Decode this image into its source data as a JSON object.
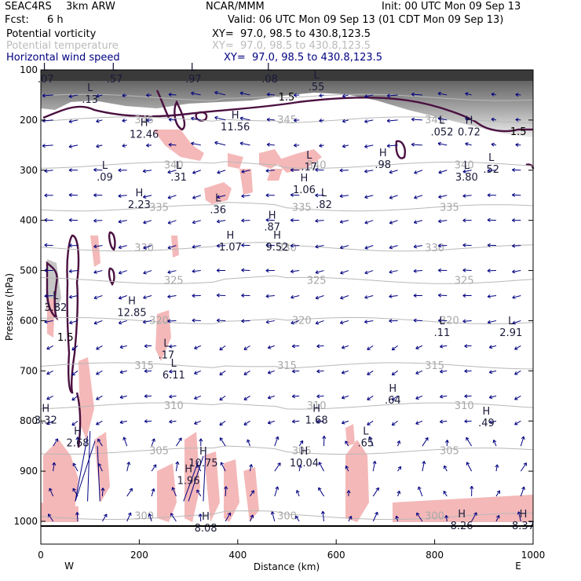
{
  "header": {
    "project": "SEAC4RS",
    "model": "3km ARW",
    "org": "NCAR/MMM",
    "init": "Init: 00 UTC Mon 09 Sep 13",
    "fcst_label": "Fcst:",
    "fcst_value": "6 h",
    "valid": "Valid: 06 UTC Mon 09 Sep 13 (01 CDT Mon 09 Sep 13)"
  },
  "legend": [
    {
      "name": "Potential vorticity",
      "xy": "XY=  97.0, 98.5 to 430.8,123.5",
      "color": "#000000"
    },
    {
      "name": "Potential temperature",
      "xy": "XY=  97.0, 98.5 to 430.8,123.5",
      "color": "#bbbbbb"
    },
    {
      "name": "Horizontal wind speed",
      "xy": "XY=  97.0, 98.5 to 430.8,123.5",
      "color": "#000080"
    }
  ],
  "chart_data": {
    "type": "cross-section",
    "xlabel": "Distance (km)",
    "ylabel": "Pressure (hPa)",
    "xlim": [
      0,
      1000
    ],
    "ylim": [
      1000,
      100
    ],
    "x_ticks": [
      0,
      200,
      400,
      600,
      800,
      1000
    ],
    "y_ticks": [
      100,
      200,
      300,
      400,
      500,
      600,
      700,
      800,
      900,
      1000
    ],
    "x_end_labels": [
      "W",
      "E"
    ],
    "theta_contours": [
      {
        "label": "300",
        "p": 990
      },
      {
        "label": "305",
        "p": 860
      },
      {
        "label": "310",
        "p": 770
      },
      {
        "label": "315",
        "p": 690
      },
      {
        "label": "320",
        "p": 600
      },
      {
        "label": "325",
        "p": 520
      },
      {
        "label": "330",
        "p": 455
      },
      {
        "label": "335",
        "p": 375
      },
      {
        "label": "340",
        "p": 290
      },
      {
        "label": "345",
        "p": 200
      },
      {
        "label": "1.5",
        "p": 155
      }
    ],
    "extrema": [
      {
        "kind": "L",
        "value": ".07",
        "x": 10,
        "p": 105
      },
      {
        "kind": "L",
        "value": ".57",
        "x": 150,
        "p": 105
      },
      {
        "kind": "L",
        "value": ".97",
        "x": 310,
        "p": 105
      },
      {
        "kind": "L",
        "value": ".08",
        "x": 465,
        "p": 105
      },
      {
        "kind": "L",
        "value": ".55",
        "x": 560,
        "p": 120
      },
      {
        "kind": "L",
        "value": ".13",
        "x": 100,
        "p": 145
      },
      {
        "kind": "H",
        "value": "12.46",
        "x": 210,
        "p": 215
      },
      {
        "kind": "H",
        "value": "11.56",
        "x": 395,
        "p": 200
      },
      {
        "kind": "L",
        "value": ".17",
        "x": 545,
        "p": 280
      },
      {
        "kind": "L",
        "value": ".052",
        "x": 815,
        "p": 210
      },
      {
        "kind": "H",
        "value": "0.72",
        "x": 870,
        "p": 210
      },
      {
        "kind": "H",
        "value": ".98",
        "x": 695,
        "p": 275
      },
      {
        "kind": "L",
        "value": ".52",
        "x": 915,
        "p": 285
      },
      {
        "kind": "L",
        "value": "3.80",
        "x": 865,
        "p": 300
      },
      {
        "kind": "L",
        "value": ".09",
        "x": 130,
        "p": 300
      },
      {
        "kind": "L",
        "value": ".31",
        "x": 280,
        "p": 300
      },
      {
        "kind": "H",
        "value": "2.23",
        "x": 200,
        "p": 355
      },
      {
        "kind": "L",
        "value": ".36",
        "x": 360,
        "p": 365
      },
      {
        "kind": "H",
        "value": "1.06",
        "x": 535,
        "p": 325
      },
      {
        "kind": "L",
        "value": ".82",
        "x": 575,
        "p": 355
      },
      {
        "kind": "H",
        "value": ".87",
        "x": 470,
        "p": 400
      },
      {
        "kind": "H",
        "value": "1.07",
        "x": 385,
        "p": 440
      },
      {
        "kind": "H",
        "value": "9.52",
        "x": 480,
        "p": 440
      },
      {
        "kind": "L",
        "value": "3.82",
        "x": 30,
        "p": 560
      },
      {
        "kind": "H",
        "value": "12.85",
        "x": 185,
        "p": 570
      },
      {
        "kind": "L",
        "value": ".11",
        "x": 815,
        "p": 610
      },
      {
        "kind": "L",
        "value": "2.91",
        "x": 955,
        "p": 610
      },
      {
        "kind": "L",
        "value": ".17",
        "x": 255,
        "p": 655
      },
      {
        "kind": "L",
        "value": "6.11",
        "x": 270,
        "p": 695
      },
      {
        "kind": "H",
        "value": ".64",
        "x": 715,
        "p": 745
      },
      {
        "kind": "H",
        "value": "3.32",
        "x": 10,
        "p": 785
      },
      {
        "kind": "H",
        "value": "1.68",
        "x": 560,
        "p": 785
      },
      {
        "kind": "H",
        "value": ".49",
        "x": 905,
        "p": 790
      },
      {
        "kind": "H",
        "value": "2.68",
        "x": 75,
        "p": 830
      },
      {
        "kind": "L",
        "value": ".65",
        "x": 660,
        "p": 830
      },
      {
        "kind": "H",
        "value": "10.75",
        "x": 330,
        "p": 870
      },
      {
        "kind": "H",
        "value": "10.04",
        "x": 535,
        "p": 870
      },
      {
        "kind": "H",
        "value": "1.96",
        "x": 300,
        "p": 905
      },
      {
        "kind": "H",
        "value": "8.08",
        "x": 335,
        "p": 1000
      },
      {
        "kind": "H",
        "value": "8.26",
        "x": 855,
        "p": 995
      },
      {
        "kind": "H",
        "value": "8.37",
        "x": 980,
        "p": 995
      }
    ],
    "pv_contour_labels": [
      {
        "value": "1.5",
        "x": 50,
        "p": 640
      },
      {
        "value": "1.5",
        "x": 970,
        "p": 230
      }
    ],
    "wind_vectors": {
      "color": "#000080",
      "dx_km": 50,
      "dp_hPa": 50
    }
  }
}
